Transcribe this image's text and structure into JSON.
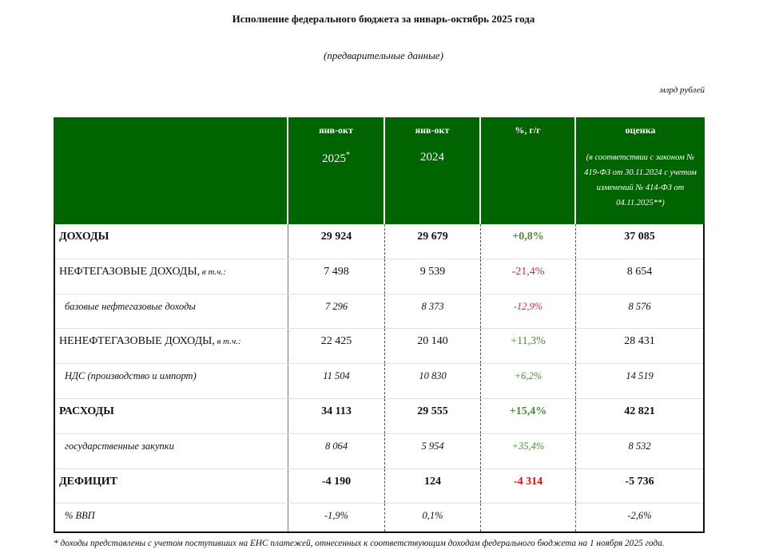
{
  "title": "Исполнение федерального бюджета за январь-октябрь 2025 года",
  "subtitle": "(предварительные данные)",
  "units": "млрд рублей",
  "header": {
    "col1": {
      "label": "янв-окт",
      "year": "2025",
      "mark": "*"
    },
    "col2": {
      "label": "янв-окт",
      "year": "2024"
    },
    "col3": {
      "label": "%, г/г"
    },
    "col4": {
      "label": "оценка",
      "note": "(в соответствии с законом № 419-ФЗ от 30.11.2024 с учетом изменений № 414-ФЗ от 04.11.2025**)"
    }
  },
  "rows": [
    {
      "label": "ДОХОДЫ",
      "suffix": "",
      "v2025": "29 924",
      "v2024": "29 679",
      "pct": "+0,8%",
      "est": "37 085"
    },
    {
      "label": "НЕФТЕГАЗОВЫЕ ДОХОДЫ,",
      "suffix": " в т.ч.:",
      "v2025": "7 498",
      "v2024": "9 539",
      "pct": "-21,4%",
      "est": "8 654"
    },
    {
      "label": "базовые нефтегазовые доходы",
      "suffix": "",
      "v2025": "7 296",
      "v2024": "8 373",
      "pct": "-12,9%",
      "est": "8 576"
    },
    {
      "label": "НЕНЕФТЕГАЗОВЫЕ ДОХОДЫ,",
      "suffix": " в т.ч.:",
      "v2025": "22 425",
      "v2024": "20 140",
      "pct": "+11,3%",
      "est": "28 431"
    },
    {
      "label": "НДС (производство и импорт)",
      "suffix": "",
      "v2025": "11 504",
      "v2024": "10 830",
      "pct": "+6,2%",
      "est": "14 519"
    },
    {
      "label": "РАСХОДЫ",
      "suffix": "",
      "v2025": "34 113",
      "v2024": "29 555",
      "pct": "+15,4%",
      "est": "42 821"
    },
    {
      "label": "государственные закупки",
      "suffix": "",
      "v2025": "8 064",
      "v2024": "5 954",
      "pct": "+35,4%",
      "est": "8 532"
    },
    {
      "label": "ДЕФИЦИТ",
      "suffix": "",
      "v2025": "-4 190",
      "v2024": "124",
      "pct": "-4 314",
      "est": "-5 736"
    },
    {
      "label": "% ВВП",
      "suffix": "",
      "v2025": "-1,9%",
      "v2024": "0,1%",
      "pct": "",
      "est": "-2,6%"
    }
  ],
  "colors": {
    "header_bg": "#006400",
    "positive": "#4a8a3a",
    "negative": "#d9283a"
  },
  "footnote": "* доходы представлены с учетом поступивших на ЕНС платежей, отнесенных к соответствующим доходам федерального бюджета на 1 ноября 2025 года."
}
